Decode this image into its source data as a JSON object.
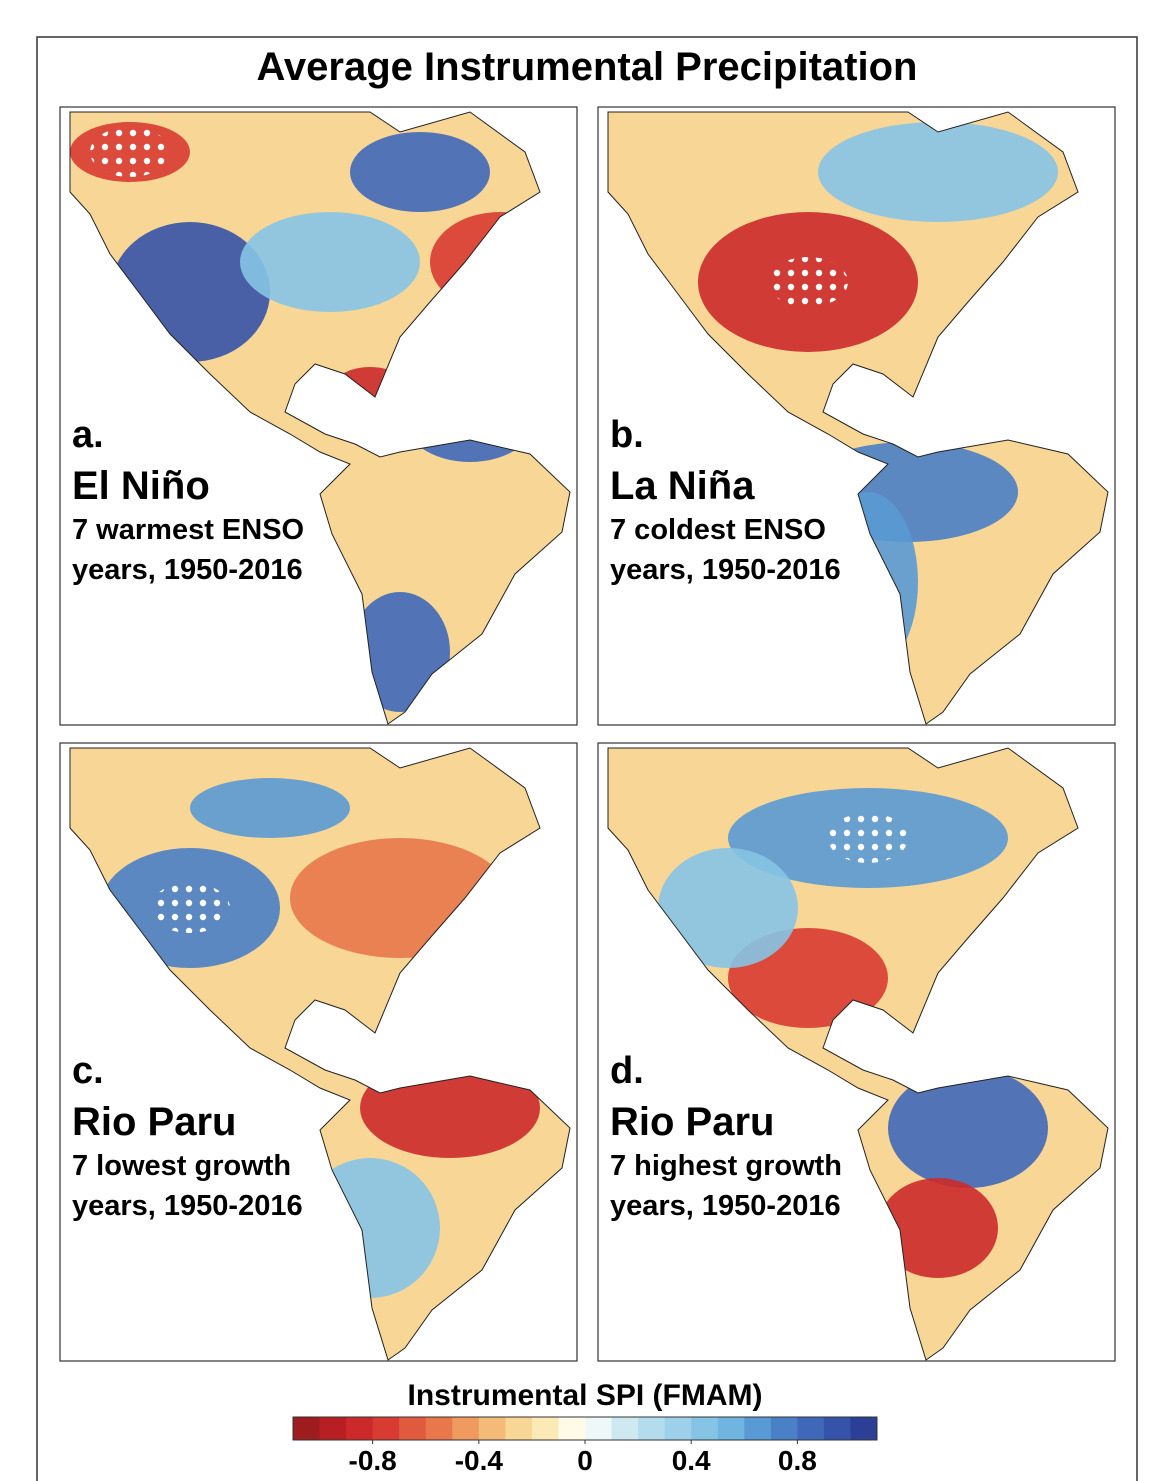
{
  "title": "Average Instrumental Precipitation",
  "panels": [
    {
      "letter": "a.",
      "name": "El Niño",
      "line1": "7 warmest ENSO",
      "line2": "years, 1950-2016"
    },
    {
      "letter": "b.",
      "name": "La Niña",
      "line1": "7 coldest ENSO",
      "line2": "years, 1950-2016"
    },
    {
      "letter": "c.",
      "name": "Rio Paru",
      "line1": "7 lowest growth",
      "line2": "years, 1950-2016"
    },
    {
      "letter": "d.",
      "name": "Rio Paru",
      "line1": "7 highest growth",
      "line2": "years, 1950-2016"
    }
  ],
  "colorbar": {
    "title": "Instrumental SPI (FMAM)",
    "range": [
      -1.1,
      1.1
    ],
    "colors": [
      "#9e1b1e",
      "#b81f24",
      "#cc2a2a",
      "#d83b32",
      "#e05a3e",
      "#e8784b",
      "#ef9a5e",
      "#f4bb78",
      "#f8d696",
      "#fbeab5",
      "#fffbe6",
      "#eef8f8",
      "#cfe9f0",
      "#b3dcec",
      "#9dd0ea",
      "#86c4e6",
      "#6fb5e0",
      "#5a9ad4",
      "#4a80c6",
      "#3f68b8",
      "#3553a8",
      "#2b3f96"
    ],
    "ticks": [
      -0.8,
      -0.4,
      0,
      0.4,
      0.8
    ]
  }
}
